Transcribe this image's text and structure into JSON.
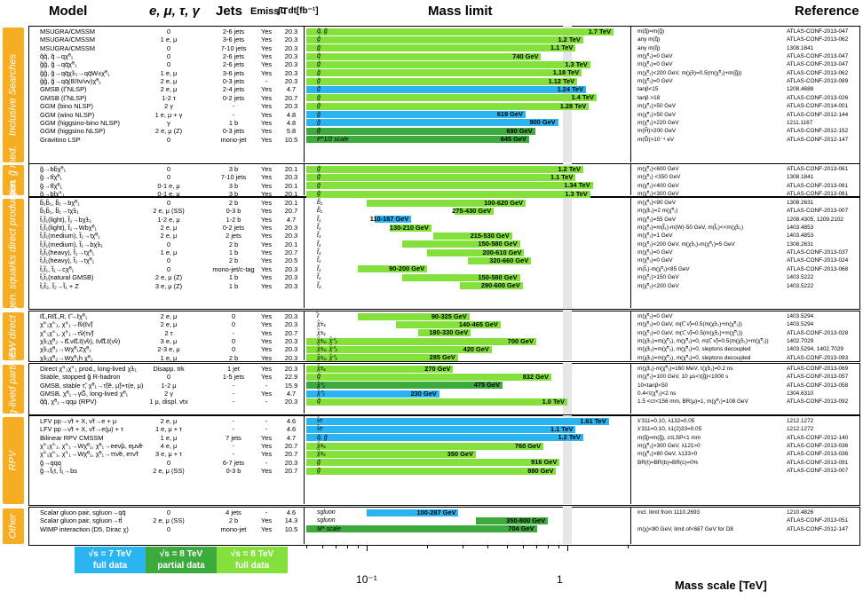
{
  "headers": {
    "model": "Model",
    "leptons": "e, μ, τ, γ",
    "jets": "Jets",
    "emiss": "Emiss T",
    "lumi": "∫L dt[fb⁻¹]",
    "mass_limit": "Mass limit",
    "reference": "Reference"
  },
  "colors": {
    "tev7": "#2ab4f0",
    "tev8_partial": "#3caa3c",
    "tev8_full": "#84e03a",
    "category": "#f6ad22"
  },
  "categories": [
    {
      "label": "Inclusive Searches"
    },
    {
      "label": "3rd gen. g̃ med."
    },
    {
      "label": "3rd gen. squarks direct production"
    },
    {
      "label": "EW direct"
    },
    {
      "label": "Long-lived particles"
    },
    {
      "label": "RPV"
    },
    {
      "label": "Other"
    }
  ],
  "rows": [
    {
      "sec": 0,
      "model": "MSUGRA/CMSSM",
      "lep": "0",
      "jets": "2-6 jets",
      "miss": "Yes",
      "lumi": "20.3",
      "part": "q̃, g̃",
      "lo": 0.05,
      "hi": 1.7,
      "val": "1.7 TeV",
      "c": "tev8_full",
      "limit": "m(q̃)=m(g̃)",
      "ref": "ATLAS-CONF-2013-047"
    },
    {
      "sec": 0,
      "model": "MSUGRA/CMSSM",
      "lep": "1 e, μ",
      "jets": "3-6 jets",
      "miss": "Yes",
      "lumi": "20.3",
      "part": "g̃",
      "lo": 0.05,
      "hi": 1.2,
      "val": "1.2 TeV",
      "c": "tev8_full",
      "limit": "any m(q̃)",
      "ref": "ATLAS-CONF-2013-062"
    },
    {
      "sec": 0,
      "model": "MSUGRA/CMSSM",
      "lep": "0",
      "jets": "7-10 jets",
      "miss": "Yes",
      "lumi": "20.3",
      "part": "g̃",
      "lo": 0.05,
      "hi": 1.1,
      "val": "1.1 TeV",
      "c": "tev8_full",
      "limit": "any m(q̃)",
      "ref": "1308.1841"
    },
    {
      "sec": 0,
      "model": "q̃q̃, q̃→qχ̃⁰₁",
      "lep": "0",
      "jets": "2-6 jets",
      "miss": "Yes",
      "lumi": "20.3",
      "part": "q̃",
      "lo": 0.05,
      "hi": 0.74,
      "val": "740 GeV",
      "c": "tev8_full",
      "limit": "m(χ̃⁰₁)=0 GeV",
      "ref": "ATLAS-CONF-2013-047"
    },
    {
      "sec": 0,
      "model": "g̃g̃, g̃→qq̄χ̃⁰₁",
      "lep": "0",
      "jets": "2-6 jets",
      "miss": "Yes",
      "lumi": "20.3",
      "part": "g̃",
      "lo": 0.05,
      "hi": 1.3,
      "val": "1.3 TeV",
      "c": "tev8_full",
      "limit": "m(χ̃⁰₁)=0 GeV",
      "ref": "ATLAS-CONF-2013-047"
    },
    {
      "sec": 0,
      "model": "g̃g̃, g̃→qq̄χ̃±₁→qq̄W±χ̃⁰₁",
      "lep": "1 e, μ",
      "jets": "3-6 jets",
      "miss": "Yes",
      "lumi": "20.3",
      "part": "g̃",
      "lo": 0.05,
      "hi": 1.18,
      "val": "1.18 TeV",
      "c": "tev8_full",
      "limit": "m(χ̃⁰₁)<200 GeV, m(χ̃±)=0.5(m(χ̃⁰₁)+m(g̃))",
      "ref": "ATLAS-CONF-2013-062"
    },
    {
      "sec": 0,
      "model": "g̃g̃, g̃→qq̄(ℓℓ/ℓν/νν)χ̃⁰₁",
      "lep": "2 e, μ",
      "jets": "0-3 jets",
      "miss": "-",
      "lumi": "20.3",
      "part": "g̃",
      "lo": 0.05,
      "hi": 1.12,
      "val": "1.12 TeV",
      "c": "tev8_full",
      "limit": "m(χ̃⁰₁)=0 GeV",
      "ref": "ATLAS-CONF-2013-089"
    },
    {
      "sec": 0,
      "model": "GMSB (ℓ̃ NLSP)",
      "lep": "2 e, μ",
      "jets": "2-4 jets",
      "miss": "Yes",
      "lumi": "4.7",
      "part": "g̃",
      "lo": 0.05,
      "hi": 1.24,
      "val": "1.24 TeV",
      "c": "tev7",
      "limit": "tanβ<15",
      "ref": "1208.4688"
    },
    {
      "sec": 0,
      "model": "GMSB (ℓ̃ NLSP)",
      "lep": "1-2 τ",
      "jets": "0-2 jets",
      "miss": "Yes",
      "lumi": "20.7",
      "part": "g̃",
      "lo": 0.05,
      "hi": 1.4,
      "val": "1.4 TeV",
      "c": "tev8_full",
      "limit": "tanβ >18",
      "ref": "ATLAS-CONF-2013-026"
    },
    {
      "sec": 0,
      "model": "GGM (bino NLSP)",
      "lep": "2 γ",
      "jets": "-",
      "miss": "Yes",
      "lumi": "20.3",
      "part": "g̃",
      "lo": 0.05,
      "hi": 1.28,
      "val": "1.28 TeV",
      "c": "tev8_full",
      "limit": "m(χ̃⁰₁)>50 GeV",
      "ref": "ATLAS-CONF-2014-001"
    },
    {
      "sec": 0,
      "model": "GGM (wino NLSP)",
      "lep": "1 e, μ + γ",
      "jets": "-",
      "miss": "Yes",
      "lumi": "4.8",
      "part": "g̃",
      "lo": 0.05,
      "hi": 0.619,
      "val": "619 GeV",
      "c": "tev7",
      "limit": "m(χ̃⁰₁)>50 GeV",
      "ref": "ATLAS-CONF-2012-144"
    },
    {
      "sec": 0,
      "model": "GGM (higgsino-bino NLSP)",
      "lep": "γ",
      "jets": "1 b",
      "miss": "Yes",
      "lumi": "4.8",
      "part": "g̃",
      "lo": 0.05,
      "hi": 0.9,
      "val": "900 GeV",
      "c": "tev7",
      "limit": "m(χ̃⁰₁)>220 GeV",
      "ref": "1211.1167"
    },
    {
      "sec": 0,
      "model": "GGM (higgsino NLSP)",
      "lep": "2 e, μ (Z)",
      "jets": "0-3 jets",
      "miss": "Yes",
      "lumi": "5.8",
      "part": "g̃",
      "lo": 0.05,
      "hi": 0.69,
      "val": "690 GeV",
      "c": "tev8_partial",
      "limit": "m(H̃)>200 GeV",
      "ref": "ATLAS-CONF-2012-152"
    },
    {
      "sec": 0,
      "model": "Gravitino LSP",
      "lep": "0",
      "jets": "mono-jet",
      "miss": "Yes",
      "lumi": "10.5",
      "part": "F^1/2 scale",
      "lo": 0.05,
      "hi": 0.645,
      "val": "645 GeV",
      "c": "tev8_partial",
      "limit": "m(G̃)>10⁻⁴ eV",
      "ref": "ATLAS-CONF-2012-147"
    },
    {
      "sec": 1,
      "model": "g̃→bb̄χ̃⁰₁",
      "lep": "0",
      "jets": "3 b",
      "miss": "Yes",
      "lumi": "20.1",
      "part": "g̃",
      "lo": 0.05,
      "hi": 1.2,
      "val": "1.2 TeV",
      "c": "tev8_full",
      "limit": "m(χ̃⁰₁)<600 GeV",
      "ref": "ATLAS-CONF-2013-061"
    },
    {
      "sec": 1,
      "model": "g̃→tt̄χ̃⁰₁",
      "lep": "0",
      "jets": "7-10 jets",
      "miss": "Yes",
      "lumi": "20.3",
      "part": "g̃",
      "lo": 0.05,
      "hi": 1.1,
      "val": "1.1 TeV",
      "c": "tev8_full",
      "limit": "m(χ̃⁰₁) <350 GeV",
      "ref": "1308.1841"
    },
    {
      "sec": 1,
      "model": "g̃→tt̄χ̃⁰₁",
      "lep": "0-1 e, μ",
      "jets": "3 b",
      "miss": "Yes",
      "lumi": "20.1",
      "part": "g̃",
      "lo": 0.05,
      "hi": 1.34,
      "val": "1.34 TeV",
      "c": "tev8_full",
      "limit": "m(χ̃⁰₁)<400 GeV",
      "ref": "ATLAS-CONF-2013-061"
    },
    {
      "sec": 1,
      "model": "g̃→bt̄χ̃⁺₁",
      "lep": "0-1 e, μ",
      "jets": "3 b",
      "miss": "Yes",
      "lumi": "20.1",
      "part": "g̃",
      "lo": 0.05,
      "hi": 1.3,
      "val": "1.3 TeV",
      "c": "tev8_full",
      "limit": "m(χ̃⁰₁)<300 GeV",
      "ref": "ATLAS-CONF-2013-061"
    },
    {
      "sec": 2,
      "model": "b̃₁b̃₁, b̃₁→bχ̃⁰₁",
      "lep": "0",
      "jets": "2 b",
      "miss": "Yes",
      "lumi": "20.1",
      "part": "b̃₁",
      "lo": 0.1,
      "hi": 0.62,
      "val": "100-620 GeV",
      "c": "tev8_full",
      "limit": "m(χ̃⁰₁)<90 GeV",
      "ref": "1308.2631"
    },
    {
      "sec": 2,
      "model": "b̃₁b̃₁, b̃₁→tχ̃±₁",
      "lep": "2 e, μ (SS)",
      "jets": "0-3 b",
      "miss": "Yes",
      "lumi": "20.7",
      "part": "b̃₁",
      "lo": 0.275,
      "hi": 0.43,
      "val": "275-430 GeV",
      "c": "tev8_full",
      "limit": "m(χ̃±₁)=2 m(χ̃⁰₁)",
      "ref": "ATLAS-CONF-2013-007"
    },
    {
      "sec": 2,
      "model": "t̃₁t̃₁(light), t̃₁→bχ̃±₁",
      "lep": "1-2 e, μ",
      "jets": "1-2 b",
      "miss": "Yes",
      "lumi": "4.7",
      "part": "t̃₁",
      "lo": 0.11,
      "hi": 0.167,
      "val": "110-167 GeV",
      "c": "tev7",
      "limit": "m(χ̃⁰₁)=55 GeV",
      "ref": "1208.4305, 1209.2102"
    },
    {
      "sec": 2,
      "model": "t̃₁t̃₁(light), t̃₁→Wbχ̃⁰₁",
      "lep": "2 e, μ",
      "jets": "0-2 jets",
      "miss": "Yes",
      "lumi": "20.3",
      "part": "t̃₁",
      "lo": 0.13,
      "hi": 0.21,
      "val": "130-210 GeV",
      "c": "tev8_full",
      "limit": "m(χ̃⁰₁)=m(t̃₁)-m(W)-50 GeV, m(t̃₁)<<m(χ̃±₁)",
      "ref": "1403.4853"
    },
    {
      "sec": 2,
      "model": "t̃₁t̃₁(medium), t̃₁→tχ̃⁰₁",
      "lep": "2 e, μ",
      "jets": "2 jets",
      "miss": "Yes",
      "lumi": "20.3",
      "part": "t̃₁",
      "lo": 0.215,
      "hi": 0.53,
      "val": "215-530 GeV",
      "c": "tev8_full",
      "limit": "m(χ̃⁰₁)=1 GeV",
      "ref": "1403.4853"
    },
    {
      "sec": 2,
      "model": "t̃₁t̃₁(medium), t̃₁→bχ̃±₁",
      "lep": "0",
      "jets": "2 b",
      "miss": "Yes",
      "lumi": "20.1",
      "part": "t̃₁",
      "lo": 0.15,
      "hi": 0.58,
      "val": "150-580 GeV",
      "c": "tev8_full",
      "limit": "m(χ̃⁰₁)<200 GeV, m(χ̃±₁)-m(χ̃⁰₁)=5 GeV",
      "ref": "1308.2631"
    },
    {
      "sec": 2,
      "model": "t̃₁t̃₁(heavy), t̃₁→tχ̃⁰₁",
      "lep": "1 e, μ",
      "jets": "1 b",
      "miss": "Yes",
      "lumi": "20.7",
      "part": "t̃₁",
      "lo": 0.2,
      "hi": 0.61,
      "val": "200-610 GeV",
      "c": "tev8_full",
      "limit": "m(χ̃⁰₁)=0 GeV",
      "ref": "ATLAS-CONF-2013-037"
    },
    {
      "sec": 2,
      "model": "t̃₁t̃₁(heavy), t̃₁→tχ̃⁰₁",
      "lep": "0",
      "jets": "2 b",
      "miss": "Yes",
      "lumi": "20.5",
      "part": "t̃₁",
      "lo": 0.32,
      "hi": 0.66,
      "val": "320-660 GeV",
      "c": "tev8_full",
      "limit": "m(χ̃⁰₁)=0 GeV",
      "ref": "ATLAS-CONF-2013-024"
    },
    {
      "sec": 2,
      "model": "t̃₁t̃₁, t̃₁→cχ̃⁰₁",
      "lep": "0",
      "jets": "mono-jet/c-tag",
      "miss": "Yes",
      "lumi": "20.3",
      "part": "t̃₁",
      "lo": 0.09,
      "hi": 0.2,
      "val": "90-200 GeV",
      "c": "tev8_full",
      "limit": "m(t̃₁)-m(χ̃⁰₁)<85 GeV",
      "ref": "ATLAS-CONF-2013-068"
    },
    {
      "sec": 2,
      "model": "t̃₁t̃₁(natural GMSB)",
      "lep": "2 e, μ (Z)",
      "jets": "1 b",
      "miss": "Yes",
      "lumi": "20.3",
      "part": "t̃₁",
      "lo": 0.15,
      "hi": 0.58,
      "val": "150-580 GeV",
      "c": "tev8_full",
      "limit": "m(χ̃⁰₁)>150 GeV",
      "ref": "1403.5222"
    },
    {
      "sec": 2,
      "model": "t̃₂t̃₂, t̃₂→t̃₁ + Z",
      "lep": "3 e, μ (Z)",
      "jets": "1 b",
      "miss": "Yes",
      "lumi": "20.3",
      "part": "t̃₂",
      "lo": 0.29,
      "hi": 0.6,
      "val": "290-600 GeV",
      "c": "tev8_full",
      "limit": "m(χ̃⁰₁)<200 GeV",
      "ref": "1403.5222"
    },
    {
      "sec": 3,
      "model": "ℓ̃L,Rℓ̃L,R, ℓ̃→ℓχ̃⁰₁",
      "lep": "2 e, μ",
      "jets": "0",
      "miss": "Yes",
      "lumi": "20.3",
      "part": "ℓ̃",
      "lo": 0.09,
      "hi": 0.325,
      "val": "90-325 GeV",
      "c": "tev8_full",
      "limit": "m(χ̃⁰₁)=0 GeV",
      "ref": "1403.5294"
    },
    {
      "sec": 3,
      "model": "χ̃⁺₁χ̃⁻₁, χ̃⁺₁→ℓ̃ν(ℓν̃)",
      "lep": "2 e, μ",
      "jets": "0",
      "miss": "Yes",
      "lumi": "20.3",
      "part": "χ̃±₁",
      "lo": 0.14,
      "hi": 0.465,
      "val": "140-465 GeV",
      "c": "tev8_full",
      "limit": "m(χ̃⁰₁)=0 GeV, m(ℓ̃, ν̃)=0.5(m(χ̃±₁)+m(χ̃⁰₁))",
      "ref": "1403.5294"
    },
    {
      "sec": 3,
      "model": "χ̃⁺₁χ̃⁻₁, χ̃⁺₁→τ̃ν(τν̃)",
      "lep": "2 τ",
      "jets": "-",
      "miss": "Yes",
      "lumi": "20.7",
      "part": "χ̃±₁",
      "lo": 0.18,
      "hi": 0.33,
      "val": "180-330 GeV",
      "c": "tev8_full",
      "limit": "m(χ̃⁰₁)=0 GeV, m(τ̃, ν̃)=0.5(m(χ̃±₁)+m(χ̃⁰₁))",
      "ref": "ATLAS-CONF-2013-028"
    },
    {
      "sec": 3,
      "model": "χ̃±₁χ̃⁰₂→ℓ̃Lνℓ̃Lℓ(ν̃ν), ℓν̃ℓ̃Lℓ(ν̃ν)",
      "lep": "3 e, μ",
      "jets": "0",
      "miss": "Yes",
      "lumi": "20.3",
      "part": "χ̃±₁, χ̃⁰₂",
      "lo": 0.05,
      "hi": 0.7,
      "val": "700 GeV",
      "c": "tev8_full",
      "limit": "m(χ̃±₁)=m(χ̃⁰₂), m(χ̃⁰₁)=0, m(ℓ̃, ν̃)=0.5(m(χ̃±₁)+m(χ̃⁰₁))",
      "ref": "1402.7029"
    },
    {
      "sec": 3,
      "model": "χ̃±₁χ̃⁰₂→Wχ̃⁰₁Zχ̃⁰₁",
      "lep": "2-3 e, μ",
      "jets": "0",
      "miss": "Yes",
      "lumi": "20.3",
      "part": "χ̃±₁, χ̃⁰₂",
      "lo": 0.05,
      "hi": 0.42,
      "val": "420 GeV",
      "c": "tev8_full",
      "limit": "m(χ̃±₁)=m(χ̃⁰₂), m(χ̃⁰₁)=0, sleptons decoupled",
      "ref": "1403.5294, 1402.7029"
    },
    {
      "sec": 3,
      "model": "χ̃±₁χ̃⁰₂→Wχ̃⁰₁h χ̃⁰₁",
      "lep": "1 e, μ",
      "jets": "2 b",
      "miss": "Yes",
      "lumi": "20.3",
      "part": "χ̃±₁, χ̃⁰₂",
      "lo": 0.05,
      "hi": 0.285,
      "val": "285 GeV",
      "c": "tev8_full",
      "limit": "m(χ̃±₁)=m(χ̃⁰₂), m(χ̃⁰₁)=0, sleptons decoupled",
      "ref": "ATLAS-CONF-2013-093"
    },
    {
      "sec": 4,
      "model": "Direct χ̃⁺₁χ̃⁻₁ prod., long-lived χ̃±₁",
      "lep": "Disapp. trk",
      "jets": "1 jet",
      "miss": "Yes",
      "lumi": "20.3",
      "part": "χ̃±₁",
      "lo": 0.05,
      "hi": 0.27,
      "val": "270 GeV",
      "c": "tev8_full",
      "limit": "m(χ̃±₁)-m(χ̃⁰₁)=160 MeV, τ(χ̃±₁)=0.2 ns",
      "ref": "ATLAS-CONF-2013-069"
    },
    {
      "sec": 4,
      "model": "Stable, stopped g̃ R-hadron",
      "lep": "0",
      "jets": "1-5 jets",
      "miss": "Yes",
      "lumi": "22.9",
      "part": "g̃",
      "lo": 0.05,
      "hi": 0.832,
      "val": "832 GeV",
      "c": "tev8_full",
      "limit": "m(χ̃⁰₁)=100 GeV, 10 μs<τ(g̃)<1000 s",
      "ref": "ATLAS-CONF-2013-057"
    },
    {
      "sec": 4,
      "model": "GMSB, stable τ̃, χ̃⁰₁→τ̃(ẽ, μ̃)+τ(e, μ)",
      "lep": "1-2 μ",
      "jets": "-",
      "miss": "-",
      "lumi": "15.9",
      "part": "χ̃⁰₁",
      "lo": 0.05,
      "hi": 0.475,
      "val": "475 GeV",
      "c": "tev8_partial",
      "limit": "10<tanβ<50",
      "ref": "ATLAS-CONF-2013-058"
    },
    {
      "sec": 4,
      "model": "GMSB, χ̃⁰₁→γG̃, long-lived χ̃⁰₁",
      "lep": "2 γ",
      "jets": "-",
      "miss": "Yes",
      "lumi": "4.7",
      "part": "χ̃⁰₁",
      "lo": 0.05,
      "hi": 0.23,
      "val": "230 GeV",
      "c": "tev7",
      "limit": "0.4<τ(χ̃⁰₁)<2 ns",
      "ref": "1304.6310"
    },
    {
      "sec": 4,
      "model": "q̃q̃, χ̃⁰₁→qqμ (RPV)",
      "lep": "1 μ, displ. vtx",
      "jets": "-",
      "miss": "-",
      "lumi": "20.3",
      "part": "q̃",
      "lo": 0.05,
      "hi": 1.0,
      "val": "1.0 TeV",
      "c": "tev8_full",
      "limit": "1.5 <cτ<156 mm, BR(μ)=1, m(χ̃⁰₁)=108 GeV",
      "ref": "ATLAS-CONF-2013-092"
    },
    {
      "sec": 5,
      "model": "LFV pp→ν̃τ + X, ν̃τ→e + μ",
      "lep": "2 e, μ",
      "jets": "-",
      "miss": "-",
      "lumi": "4.6",
      "part": "ν̃τ",
      "lo": 0.05,
      "hi": 1.61,
      "val": "1.61 TeV",
      "c": "tev7",
      "limit": "λ'311=0.10, λ132=0.05",
      "ref": "1212.1272"
    },
    {
      "sec": 5,
      "model": "LFV pp→ν̃τ + X, ν̃τ→e(μ) + τ",
      "lep": "1 e, μ + τ",
      "jets": "-",
      "miss": "-",
      "lumi": "4.6",
      "part": "ν̃τ",
      "lo": 0.05,
      "hi": 1.1,
      "val": "1.1 TeV",
      "c": "tev7",
      "limit": "λ'311=0.10, λ1(2)33=0.05",
      "ref": "1212.1272"
    },
    {
      "sec": 5,
      "model": "Bilinear RPV CMSSM",
      "lep": "1 e, μ",
      "jets": "7 jets",
      "miss": "Yes",
      "lumi": "4.7",
      "part": "q̃, g̃",
      "lo": 0.05,
      "hi": 1.2,
      "val": "1.2 TeV",
      "c": "tev7",
      "limit": "m(q̃)=m(g̃), cτLSP<1 mm",
      "ref": "ATLAS-CONF-2012-140"
    },
    {
      "sec": 5,
      "model": "χ̃⁺₁χ̃⁻₁, χ̃⁺₁→Wχ̃⁰₁, χ̃⁰₁→eeν̃μ, eμν̃e",
      "lep": "4 e, μ",
      "jets": "-",
      "miss": "Yes",
      "lumi": "20.7",
      "part": "χ̃±₁",
      "lo": 0.05,
      "hi": 0.76,
      "val": "760 GeV",
      "c": "tev8_full",
      "limit": "m(χ̃⁰₁)>300 GeV, λ121>0",
      "ref": "ATLAS-CONF-2013-036"
    },
    {
      "sec": 5,
      "model": "χ̃⁺₁χ̃⁻₁, χ̃⁺₁→Wχ̃⁰₁, χ̃⁰₁→ττν̃e, eτν̃τ",
      "lep": "3 e, μ + τ",
      "jets": "-",
      "miss": "Yes",
      "lumi": "20.7",
      "part": "χ̃±₁",
      "lo": 0.05,
      "hi": 0.35,
      "val": "350 GeV",
      "c": "tev8_full",
      "limit": "m(χ̃⁰₁)>80 GeV, λ133>0",
      "ref": "ATLAS-CONF-2013-036"
    },
    {
      "sec": 5,
      "model": "g̃→qqq",
      "lep": "0",
      "jets": "6-7 jets",
      "miss": "-",
      "lumi": "20.3",
      "part": "g̃",
      "lo": 0.05,
      "hi": 0.916,
      "val": "916 GeV",
      "c": "tev8_full",
      "limit": "BR(t)=BR(b)=BR(c)=0%",
      "ref": "ATLAS-CONF-2013-091"
    },
    {
      "sec": 5,
      "model": "g̃→t̃₁t, t̃₁→bs",
      "lep": "2 e, μ (SS)",
      "jets": "0-3 b",
      "miss": "Yes",
      "lumi": "20.7",
      "part": "g̃",
      "lo": 0.05,
      "hi": 0.88,
      "val": "880 GeV",
      "c": "tev8_full",
      "limit": "",
      "ref": "ATLAS-CONF-2013-007"
    },
    {
      "sec": 6,
      "model": "Scalar gluon pair, sgluon→qq̄",
      "lep": "0",
      "jets": "4 jets",
      "miss": "-",
      "lumi": "4.6",
      "part": "sgluon",
      "lo": 0.1,
      "hi": 0.287,
      "val": "100-287 GeV",
      "c": "tev7",
      "limit": "incl. limit from 1110.2693",
      "ref": "1210.4826"
    },
    {
      "sec": 6,
      "model": "Scalar gluon pair, sgluon→tt̄",
      "lep": "2 e, μ (SS)",
      "jets": "2 b",
      "miss": "Yes",
      "lumi": "14.3",
      "part": "sgluon",
      "lo": 0.35,
      "hi": 0.8,
      "val": "350-800 GeV",
      "c": "tev8_partial",
      "limit": "",
      "ref": "ATLAS-CONF-2013-051"
    },
    {
      "sec": 6,
      "model": "WIMP interaction (D5, Dirac χ)",
      "lep": "0",
      "jets": "mono-jet",
      "miss": "Yes",
      "lumi": "10.5",
      "part": "M* scale",
      "lo": 0.05,
      "hi": 0.704,
      "val": "704 GeV",
      "c": "tev8_partial",
      "limit": "m(χ)<80 GeV, limit of<687 GeV for D8",
      "ref": "ATLAS-CONF-2012-147"
    }
  ],
  "axis": {
    "label": "Mass scale [TeV]",
    "min": 0.05,
    "max": 2.0,
    "scale": "log",
    "tick_labels": [
      "10⁻¹",
      "1"
    ]
  },
  "legend": [
    {
      "line1": "√s = 7 TeV",
      "line2": "full data",
      "c": "tev7"
    },
    {
      "line1": "√s = 8 TeV",
      "line2": "partial data",
      "c": "tev8_partial"
    },
    {
      "line1": "√s = 8 TeV",
      "line2": "full data",
      "c": "tev8_full"
    }
  ],
  "chart_data": {
    "type": "bar",
    "title": "Mass limit",
    "xlabel": "Mass scale [TeV]",
    "x_scale": "log",
    "xlim": [
      0.05,
      2.0
    ],
    "series_note": "horizontal bars, one per model row"
  }
}
